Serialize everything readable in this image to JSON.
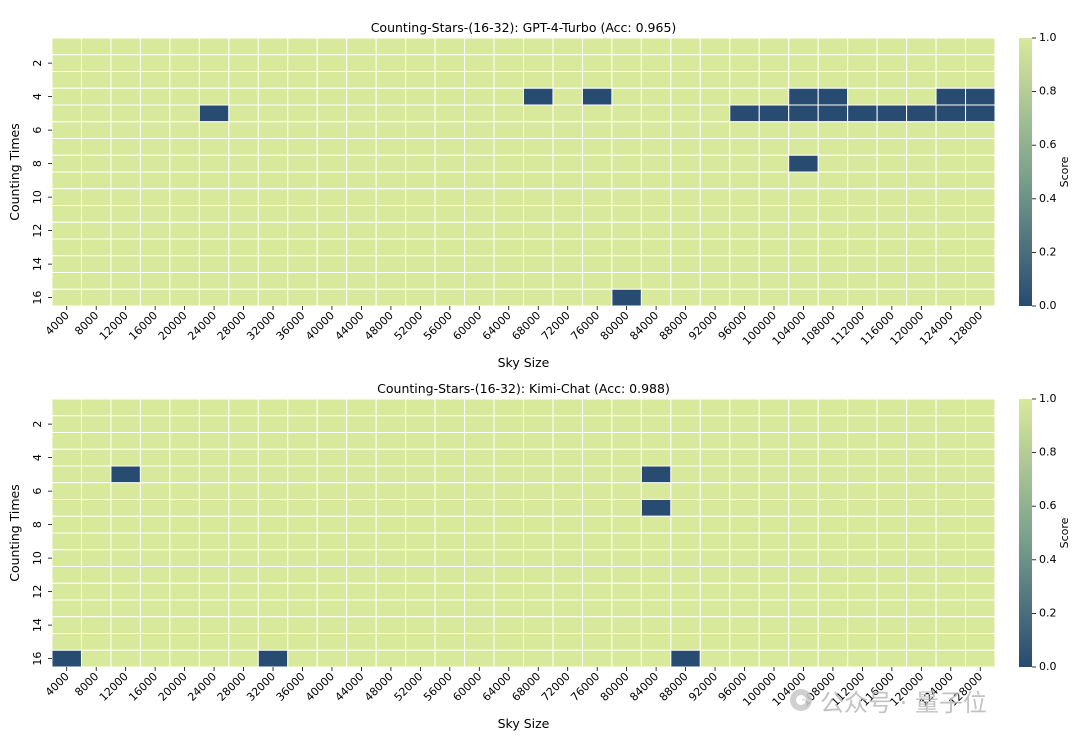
{
  "chart_data": [
    {
      "type": "heatmap",
      "title": "Counting-Stars-(16-32): GPT-4-Turbo (Acc: 0.965)",
      "xlabel": "Sky Size",
      "ylabel": "Counting Times",
      "x": [
        4000,
        8000,
        12000,
        16000,
        20000,
        24000,
        28000,
        32000,
        36000,
        40000,
        44000,
        48000,
        52000,
        56000,
        60000,
        64000,
        68000,
        72000,
        76000,
        80000,
        84000,
        88000,
        92000,
        96000,
        100000,
        104000,
        108000,
        112000,
        116000,
        120000,
        124000,
        128000
      ],
      "y": [
        1,
        2,
        3,
        4,
        5,
        6,
        7,
        8,
        9,
        10,
        11,
        12,
        13,
        14,
        15,
        16
      ],
      "ytick_labels": [
        "2",
        "4",
        "6",
        "8",
        "10",
        "12",
        "14",
        "16"
      ],
      "zero_cells": [
        {
          "x": 68000,
          "y": 4
        },
        {
          "x": 76000,
          "y": 4
        },
        {
          "x": 104000,
          "y": 4
        },
        {
          "x": 108000,
          "y": 4
        },
        {
          "x": 124000,
          "y": 4
        },
        {
          "x": 128000,
          "y": 4
        },
        {
          "x": 24000,
          "y": 5
        },
        {
          "x": 96000,
          "y": 5
        },
        {
          "x": 100000,
          "y": 5
        },
        {
          "x": 104000,
          "y": 5
        },
        {
          "x": 108000,
          "y": 5
        },
        {
          "x": 112000,
          "y": 5
        },
        {
          "x": 116000,
          "y": 5
        },
        {
          "x": 120000,
          "y": 5
        },
        {
          "x": 124000,
          "y": 5
        },
        {
          "x": 128000,
          "y": 5
        },
        {
          "x": 104000,
          "y": 8
        },
        {
          "x": 80000,
          "y": 16
        }
      ],
      "default_value": 1.0,
      "colorbar": {
        "label": "Score",
        "ticks": [
          "0.0",
          "0.2",
          "0.4",
          "0.6",
          "0.8",
          "1.0"
        ],
        "range": [
          0,
          1
        ],
        "low_color": "#274b71",
        "mid_color": "#7ea38c",
        "high_color": "#d9e99c"
      },
      "grid": true
    },
    {
      "type": "heatmap",
      "title": "Counting-Stars-(16-32): Kimi-Chat (Acc: 0.988)",
      "xlabel": "Sky Size",
      "ylabel": "Counting Times",
      "x": [
        4000,
        8000,
        12000,
        16000,
        20000,
        24000,
        28000,
        32000,
        36000,
        40000,
        44000,
        48000,
        52000,
        56000,
        60000,
        64000,
        68000,
        72000,
        76000,
        80000,
        84000,
        88000,
        92000,
        96000,
        100000,
        104000,
        108000,
        112000,
        116000,
        120000,
        124000,
        128000
      ],
      "y": [
        1,
        2,
        3,
        4,
        5,
        6,
        7,
        8,
        9,
        10,
        11,
        12,
        13,
        14,
        15,
        16
      ],
      "ytick_labels": [
        "2",
        "4",
        "6",
        "8",
        "10",
        "12",
        "14",
        "16"
      ],
      "zero_cells": [
        {
          "x": 12000,
          "y": 5
        },
        {
          "x": 84000,
          "y": 5
        },
        {
          "x": 84000,
          "y": 7
        },
        {
          "x": 4000,
          "y": 16
        },
        {
          "x": 32000,
          "y": 16
        },
        {
          "x": 88000,
          "y": 16
        }
      ],
      "default_value": 1.0,
      "colorbar": {
        "label": "Score",
        "ticks": [
          "0.0",
          "0.2",
          "0.4",
          "0.6",
          "0.8",
          "1.0"
        ],
        "range": [
          0,
          1
        ],
        "low_color": "#274b71",
        "mid_color": "#7ea38c",
        "high_color": "#d9e99c"
      },
      "grid": true
    }
  ],
  "watermark": {
    "text": "公众号 · 量子位"
  }
}
